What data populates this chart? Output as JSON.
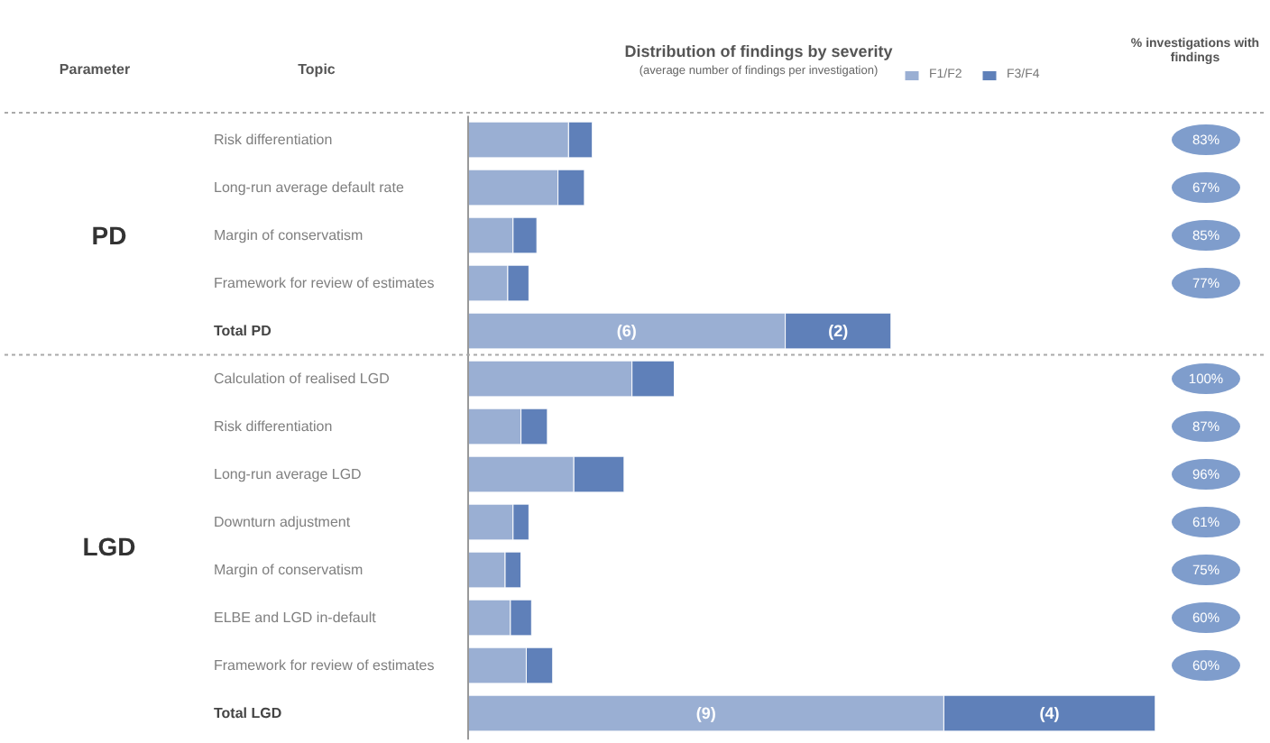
{
  "chart_data": {
    "type": "bar",
    "orientation": "horizontal",
    "stacked": true,
    "title": "Distribution of findings by severity",
    "subtitle": "(average number of findings per investigation)",
    "categories": [
      "Risk differentiation",
      "Long-run average default rate",
      "Margin of conservatism",
      "Framework for review of estimates",
      "Total PD",
      "Calculation of realised LGD",
      "Risk differentiation",
      "Long-run average LGD",
      "Downturn adjustment",
      "Margin of conservatism",
      "ELBE and LGD in-default",
      "Framework for review of estimates",
      "Total LGD"
    ],
    "series": [
      {
        "name": "F1/F2",
        "color": "#9aafd3",
        "values": [
          1.9,
          1.7,
          0.85,
          0.75,
          6,
          3.1,
          1.0,
          2.0,
          0.85,
          0.7,
          0.8,
          1.1,
          9
        ],
        "value_labels": [
          null,
          null,
          null,
          null,
          "(6)",
          null,
          null,
          null,
          null,
          null,
          null,
          null,
          "(9)"
        ]
      },
      {
        "name": "F3/F4",
        "color": "#5f80b9",
        "values": [
          0.45,
          0.5,
          0.45,
          0.4,
          2,
          0.8,
          0.5,
          0.95,
          0.3,
          0.3,
          0.4,
          0.5,
          4
        ],
        "value_labels": [
          null,
          null,
          null,
          null,
          "(2)",
          null,
          null,
          null,
          null,
          null,
          null,
          null,
          "(4)"
        ]
      }
    ],
    "legend": "top",
    "annotations": [
      "Parameter",
      "Topic",
      "% investigations with findings",
      "PD",
      "LGD",
      "83%",
      "67%",
      "85%",
      "77%",
      "100%",
      "87%",
      "96%",
      "61%",
      "75%",
      "60%",
      "60%"
    ]
  }
}
